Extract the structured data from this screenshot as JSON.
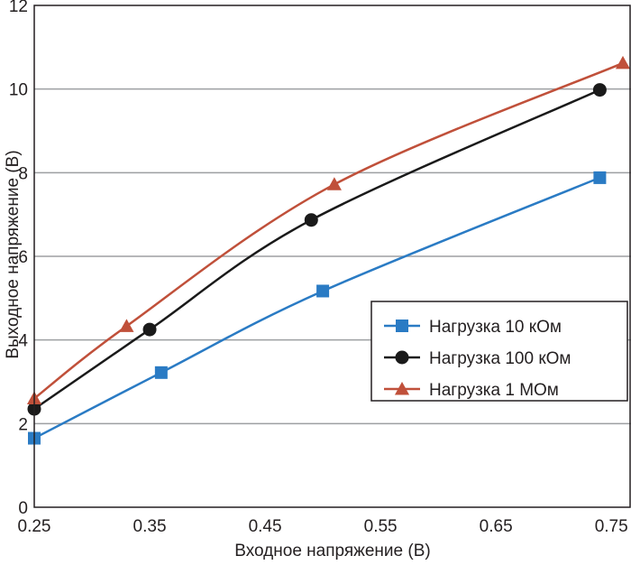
{
  "chart_data": {
    "type": "line",
    "xlabel": "Входное напряжение (В)",
    "ylabel": "Выходное напряжение (В)",
    "xlim": [
      0.25,
      0.76
    ],
    "ylim": [
      0,
      12
    ],
    "xticks": [
      "0.25",
      "0.35",
      "0.45",
      "0.55",
      "0.65",
      "0.75"
    ],
    "yticks": [
      "0",
      "2",
      "4",
      "6",
      "8",
      "10",
      "12"
    ],
    "grid": "horizontal",
    "legend_position": "bottom-right",
    "series": [
      {
        "name": "Нагрузка 10 кОм",
        "marker": "square",
        "color": "#2a7bc4",
        "points": [
          [
            0.25,
            1.65
          ],
          [
            0.36,
            3.22
          ],
          [
            0.5,
            5.17
          ],
          [
            0.74,
            7.88
          ]
        ]
      },
      {
        "name": "Нагрузка 100 кОм",
        "marker": "circle",
        "color": "#1a1a1a",
        "points": [
          [
            0.25,
            2.35
          ],
          [
            0.35,
            4.25
          ],
          [
            0.49,
            6.87
          ],
          [
            0.74,
            9.98
          ]
        ]
      },
      {
        "name": "Нагрузка 1 МОм",
        "marker": "triangle",
        "color": "#c0503a",
        "points": [
          [
            0.25,
            2.6
          ],
          [
            0.33,
            4.33
          ],
          [
            0.51,
            7.72
          ],
          [
            0.76,
            10.62
          ]
        ]
      }
    ]
  }
}
